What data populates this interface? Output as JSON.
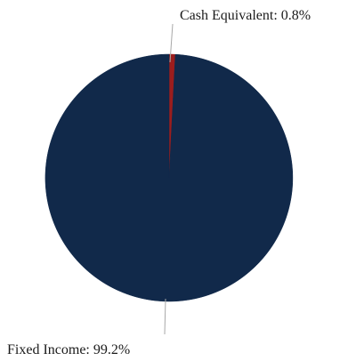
{
  "chart_data": {
    "type": "pie",
    "title": "",
    "start_angle_deg": 0,
    "direction": "clockwise",
    "legend": "none",
    "slices": [
      {
        "label": "Cash Equivalent",
        "value": 0.8,
        "display_label": "Cash Equivalent: 0.8%",
        "color": "#9b1d1d"
      },
      {
        "label": "Fixed Income",
        "value": 99.2,
        "display_label": "Fixed Income: 99.2%",
        "color": "#11294a"
      }
    ]
  }
}
